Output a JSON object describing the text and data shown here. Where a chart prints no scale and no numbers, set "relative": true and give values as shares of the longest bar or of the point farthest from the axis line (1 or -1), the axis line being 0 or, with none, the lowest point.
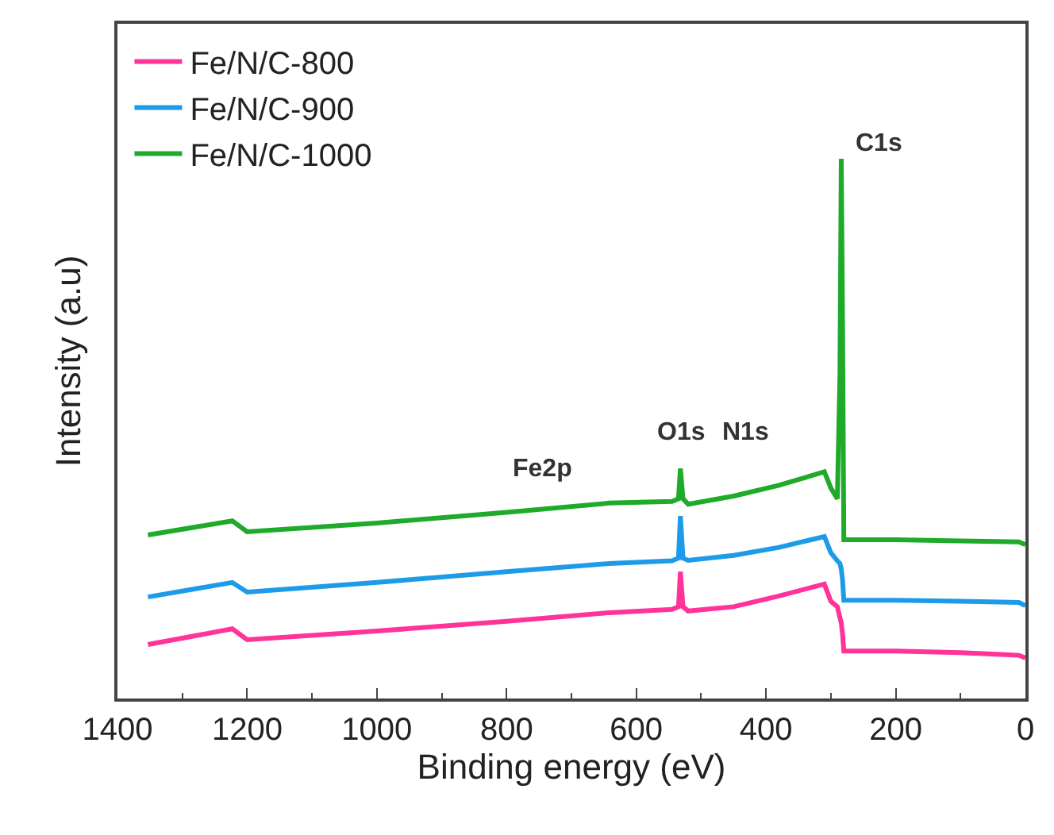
{
  "chart_data": {
    "type": "line",
    "relative": true,
    "xlabel": "Binding energy (eV)",
    "ylabel": "Intensity (a.u)",
    "xlim": [
      1400,
      0
    ],
    "xticks": [
      1400,
      1200,
      1000,
      800,
      600,
      400,
      200,
      0
    ],
    "x": [
      1353,
      1223,
      1200,
      1000,
      800,
      642,
      545,
      535,
      532,
      528,
      520,
      450,
      380,
      310,
      300,
      290,
      286,
      284,
      282,
      280,
      200,
      100,
      10,
      0
    ],
    "series": [
      {
        "name": "Fe/N/C-800",
        "color": "#ff3399",
        "values": [
          0.1,
          0.129,
          0.109,
          0.125,
          0.143,
          0.159,
          0.165,
          0.17,
          0.235,
          0.17,
          0.162,
          0.17,
          0.19,
          0.212,
          0.18,
          0.17,
          0.15,
          0.14,
          0.12,
          0.088,
          0.088,
          0.085,
          0.08,
          0.075
        ]
      },
      {
        "name": "Fe/N/C-900",
        "color": "#1e9be8",
        "values": [
          0.188,
          0.215,
          0.197,
          0.215,
          0.235,
          0.25,
          0.255,
          0.26,
          0.338,
          0.26,
          0.256,
          0.265,
          0.28,
          0.3,
          0.27,
          0.255,
          0.25,
          0.24,
          0.22,
          0.182,
          0.182,
          0.18,
          0.178,
          0.172
        ]
      },
      {
        "name": "Fe/N/C-1000",
        "color": "#1faa2a",
        "values": [
          0.303,
          0.329,
          0.309,
          0.325,
          0.345,
          0.362,
          0.365,
          0.37,
          0.426,
          0.37,
          0.36,
          0.375,
          0.395,
          0.42,
          0.39,
          0.37,
          0.6,
          1,
          0.7,
          0.294,
          0.294,
          0.292,
          0.29,
          0.285
        ]
      }
    ],
    "annotations": [
      "Fe2p",
      "O1s",
      "N1s",
      "C1s"
    ],
    "legend": "top left"
  }
}
